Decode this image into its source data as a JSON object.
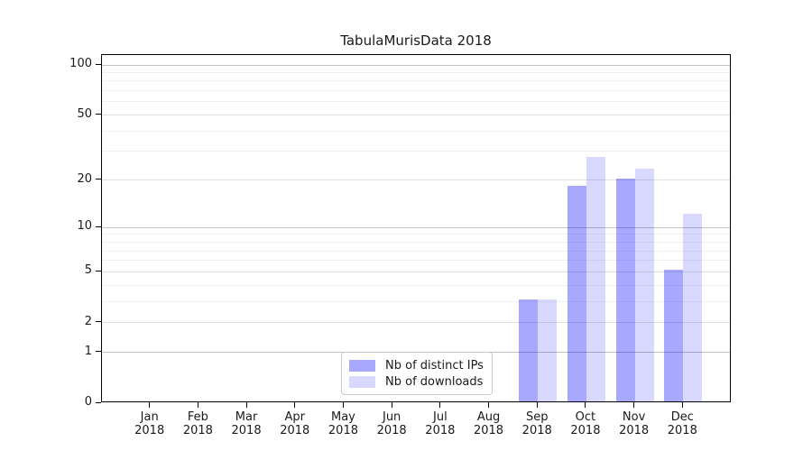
{
  "chart_data": {
    "type": "bar",
    "title": "TabulaMurisData 2018",
    "categories": [
      {
        "month": "Jan",
        "year": "2018"
      },
      {
        "month": "Feb",
        "year": "2018"
      },
      {
        "month": "Mar",
        "year": "2018"
      },
      {
        "month": "Apr",
        "year": "2018"
      },
      {
        "month": "May",
        "year": "2018"
      },
      {
        "month": "Jun",
        "year": "2018"
      },
      {
        "month": "Jul",
        "year": "2018"
      },
      {
        "month": "Aug",
        "year": "2018"
      },
      {
        "month": "Sep",
        "year": "2018"
      },
      {
        "month": "Oct",
        "year": "2018"
      },
      {
        "month": "Nov",
        "year": "2018"
      },
      {
        "month": "Dec",
        "year": "2018"
      }
    ],
    "series": [
      {
        "name": "Nb of distinct IPs",
        "color": "rgba(0,0,255,0.34)",
        "color_hex": "#aaaaf8",
        "values": [
          0,
          0,
          0,
          0,
          0,
          0,
          0,
          0,
          3,
          18,
          20,
          5
        ]
      },
      {
        "name": "Nb of downloads",
        "color": "rgba(0,0,255,0.15)",
        "color_hex": "#dadafa",
        "values": [
          0,
          0,
          0,
          0,
          0,
          0,
          0,
          0,
          3,
          27,
          23,
          12
        ]
      }
    ],
    "yscale": "log1p",
    "ylim": [
      0,
      115
    ],
    "yticks": [
      0,
      1,
      2,
      5,
      10,
      20,
      50,
      100
    ],
    "grid": "both",
    "legend_position": "lower center",
    "colors": {
      "grid_major": "#c2c2c2",
      "grid_mid": "#e0e0e0",
      "grid_minor": "#f1f1f1",
      "spine": "#000000",
      "text": "#1a1a1a",
      "background": "#ffffff"
    }
  }
}
